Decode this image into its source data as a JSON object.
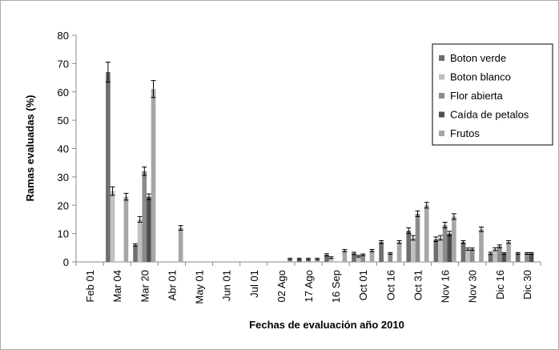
{
  "chart_data": {
    "type": "bar",
    "x_label": "Fechas de evaluación año 2010",
    "y_label": "Ramas evaluadas (%)",
    "categories": [
      "Feb 01",
      "Mar 04",
      "Mar 20",
      "Abr 01",
      "May 01",
      "Jun 01",
      "Jul 01",
      "02 Ago",
      "17 Ago",
      "16 Sep",
      "Oct 01",
      "Oct 16",
      "Oct 31",
      "Nov 16",
      "Nov 30",
      "Dic 16",
      "Dic 30"
    ],
    "series": [
      {
        "name": "Boton verde",
        "color": "#6e6e6e",
        "values": [
          0,
          67,
          6,
          0,
          0,
          0,
          0,
          0,
          1,
          2.5,
          3,
          7,
          11,
          8,
          7,
          3,
          3
        ],
        "errors": [
          null,
          3.5,
          0.4,
          null,
          null,
          null,
          null,
          null,
          0.3,
          0.4,
          0.4,
          0.5,
          1,
          0.8,
          0.5,
          0.4,
          0.3
        ]
      },
      {
        "name": "Boton blanco",
        "color": "#c0c0c0",
        "values": [
          0,
          25,
          15,
          0,
          0,
          0,
          0,
          0,
          0,
          1.5,
          2,
          0,
          8.5,
          8.5,
          4.5,
          4.5,
          0
        ],
        "errors": [
          null,
          1.5,
          1,
          null,
          null,
          null,
          null,
          null,
          null,
          0.3,
          0.3,
          null,
          0.8,
          0.8,
          0.4,
          0.5,
          null
        ]
      },
      {
        "name": "Flor abierta",
        "color": "#8c8c8c",
        "values": [
          0,
          0,
          32,
          0,
          0,
          0,
          0,
          0,
          1,
          0,
          2.5,
          3,
          17,
          13,
          4.5,
          5.5,
          3
        ],
        "errors": [
          null,
          null,
          1.5,
          null,
          null,
          null,
          null,
          null,
          0.3,
          null,
          0.3,
          0.3,
          1,
          1,
          0.4,
          0.5,
          0.3
        ]
      },
      {
        "name": "Caída de petalos",
        "color": "#4f4f4f",
        "values": [
          0,
          0,
          23,
          0,
          0,
          0,
          0,
          0,
          0,
          0,
          0,
          0,
          0,
          10,
          0,
          3,
          3
        ],
        "errors": [
          null,
          null,
          1,
          null,
          null,
          null,
          null,
          null,
          null,
          null,
          null,
          null,
          null,
          0.8,
          null,
          0.3,
          0.3
        ]
      },
      {
        "name": "Frutos",
        "color": "#a6a6a6",
        "values": [
          0,
          23,
          61,
          12,
          0,
          0,
          0,
          1,
          1,
          4,
          4,
          7,
          20,
          16,
          11.5,
          7,
          0
        ],
        "errors": [
          null,
          1.2,
          3,
          0.8,
          null,
          null,
          null,
          0.3,
          0.3,
          0.4,
          0.4,
          0.5,
          1,
          1,
          0.8,
          0.5,
          null
        ]
      }
    ],
    "ylim": [
      0,
      80
    ],
    "yticks": [
      0,
      10,
      20,
      30,
      40,
      50,
      60,
      70,
      80
    ],
    "legend": "top-right"
  }
}
